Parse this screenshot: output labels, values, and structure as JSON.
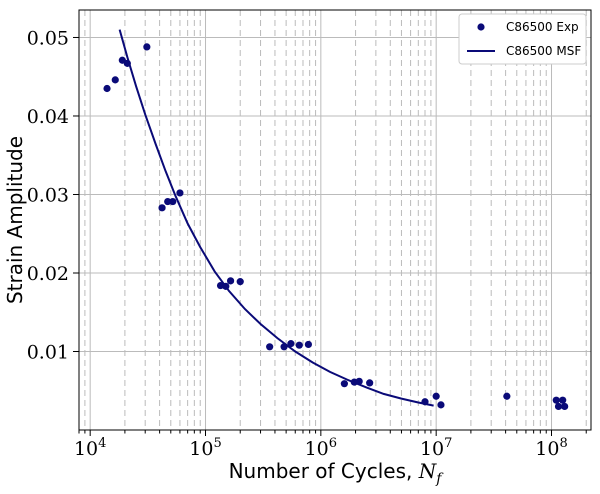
{
  "chart_data": {
    "type": "scatter",
    "title": "",
    "xlabel": "Number of Cycles, ",
    "xlabel_math": "N",
    "xlabel_sub": "f",
    "ylabel": "Strain Amplitude",
    "xscale": "log",
    "xlim": [
      8000,
      220000000
    ],
    "ylim": [
      0,
      0.0535
    ],
    "yticks": [
      "0.01",
      "0.02",
      "0.03",
      "0.04",
      "0.05"
    ],
    "xticks": [
      {
        "base": "10",
        "exp": "4"
      },
      {
        "base": "10",
        "exp": "5"
      },
      {
        "base": "10",
        "exp": "6"
      },
      {
        "base": "10",
        "exp": "7"
      },
      {
        "base": "10",
        "exp": "8"
      }
    ],
    "grid": "major and minor vertical dashed, horizontal solid",
    "legend_position": "top-right",
    "colors": {
      "series": "#0a0a78"
    },
    "series": [
      {
        "name": "C86500 Exp",
        "kind": "scatter",
        "x": [
          14000,
          16500,
          19000,
          21000,
          31000,
          42000,
          47000,
          52000,
          60000,
          135000,
          150000,
          165000,
          200000,
          360000,
          480000,
          550000,
          650000,
          780000,
          1600000,
          1950000,
          2150000,
          2650000,
          8000000,
          10000000,
          11000000,
          41000000,
          110000000,
          115000000,
          125000000,
          130000000
        ],
        "y": [
          0.0435,
          0.0446,
          0.0471,
          0.0467,
          0.0488,
          0.0283,
          0.0291,
          0.0291,
          0.0302,
          0.0184,
          0.0183,
          0.019,
          0.0189,
          0.0106,
          0.0106,
          0.011,
          0.0108,
          0.0109,
          0.0059,
          0.0061,
          0.0062,
          0.006,
          0.0036,
          0.0043,
          0.0032,
          0.0043,
          0.0038,
          0.003,
          0.0038,
          0.003
        ]
      },
      {
        "name": "C86500 MSF",
        "kind": "line",
        "x": [
          18000,
          21000,
          25000,
          30000,
          37000,
          45000,
          55000,
          70000,
          90000,
          120000,
          160000,
          220000,
          300000,
          420000,
          600000,
          850000,
          1200000,
          1700000,
          2500000,
          3500000,
          5000000,
          7000000,
          9500000
        ],
        "y": [
          0.051,
          0.0475,
          0.0438,
          0.0402,
          0.0364,
          0.033,
          0.0298,
          0.0263,
          0.0233,
          0.0202,
          0.0177,
          0.0154,
          0.0135,
          0.0117,
          0.01,
          0.0086,
          0.0074,
          0.0064,
          0.0054,
          0.0046,
          0.004,
          0.0035,
          0.0031
        ]
      }
    ]
  }
}
